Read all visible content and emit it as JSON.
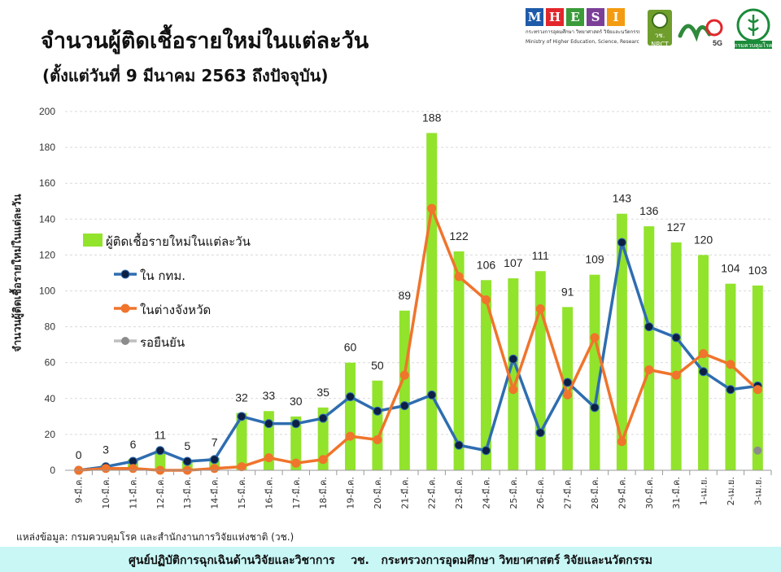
{
  "title": "จำนวนผู้ติดเชื้อรายใหม่ในแต่ละวัน",
  "subtitle": "(ตั้งแต่วันที่ 9 มีนาคม 2563 ถึงปัจจุบัน)",
  "logos": {
    "mhesi_letters": [
      "M",
      "H",
      "E",
      "S",
      "I"
    ],
    "mhesi_colors": [
      "#1f5aa8",
      "#e2262b",
      "#3b9b3a",
      "#7b3f98",
      "#f39c12"
    ],
    "mhesi_caption": "กระทรวงการอุดมศึกษา วิทยาศาสตร์ วิจัยและนวัตกรรม",
    "mhesi_caption_en": "Ministry of Higher Education, Science, Research and Innovation",
    "nrct_label": "วช. NRCT",
    "badge_5g": "5G",
    "dmsc_caption": "กรมควบคุมโรค"
  },
  "source": "แหล่งข้อมูล: กรมควบคุมโรค และสำนักงานการวิจัยแห่งชาติ (วช.)",
  "footer": "ศูนย์ปฏิบัติการฉุกเฉินด้านวิจัยและวิชาการ    วช.   กระทรวงการอุดมศึกษา วิทยาศาสตร์ วิจัยและนวัตกรรม",
  "chart_data": {
    "type": "bar",
    "ylabel": "จำนวนผู้ติดเชื้อรายใหม่ในแต่ละวัน",
    "ylim": [
      0,
      200
    ],
    "yticks": [
      0,
      20,
      40,
      60,
      80,
      100,
      120,
      140,
      160,
      180,
      200
    ],
    "grid": true,
    "legend_position": "left",
    "categories": [
      "9-มี.ค.",
      "10-มี.ค.",
      "11-มี.ค.",
      "12-มี.ค.",
      "13-มี.ค.",
      "14-มี.ค.",
      "15-มี.ค.",
      "16-มี.ค.",
      "17-มี.ค.",
      "18-มี.ค.",
      "19-มี.ค.",
      "20-มี.ค.",
      "21-มี.ค.",
      "22-มี.ค.",
      "23-มี.ค.",
      "24-มี.ค.",
      "25-มี.ค.",
      "26-มี.ค.",
      "27-มี.ค.",
      "28-มี.ค.",
      "29-มี.ค.",
      "30-มี.ค.",
      "31-มี.ค.",
      "1-เม.ย.",
      "2-เม.ย.",
      "3-เม.ย."
    ],
    "series": [
      {
        "name": "ผู้ติดเชื้อรายใหม่ในแต่ละวัน",
        "type": "bar",
        "color": "#92e32c",
        "values": [
          0,
          3,
          6,
          11,
          5,
          7,
          32,
          33,
          30,
          35,
          60,
          50,
          89,
          188,
          122,
          106,
          107,
          111,
          91,
          109,
          143,
          136,
          127,
          120,
          104,
          103
        ]
      },
      {
        "name": "ใน กทม.",
        "type": "line",
        "color": "#2e6db0",
        "marker": "#0d1f44",
        "values": [
          0,
          2,
          5,
          11,
          5,
          6,
          30,
          26,
          26,
          29,
          41,
          33,
          36,
          42,
          14,
          11,
          62,
          21,
          49,
          35,
          127,
          80,
          74,
          55,
          45,
          47
        ]
      },
      {
        "name": "ในต่างจังหวัด",
        "type": "line",
        "color": "#f0742c",
        "marker": "#f0742c",
        "values": [
          0,
          1,
          1,
          0,
          0,
          1,
          2,
          7,
          4,
          6,
          19,
          17,
          53,
          146,
          108,
          95,
          45,
          90,
          42,
          74,
          16,
          56,
          53,
          65,
          59,
          45
        ]
      },
      {
        "name": "รอยืนยัน",
        "type": "point",
        "color": "#8c8c8c",
        "values": [
          null,
          null,
          null,
          null,
          null,
          null,
          null,
          null,
          null,
          null,
          null,
          null,
          null,
          null,
          null,
          null,
          null,
          null,
          null,
          null,
          null,
          null,
          null,
          null,
          null,
          11
        ]
      }
    ]
  }
}
